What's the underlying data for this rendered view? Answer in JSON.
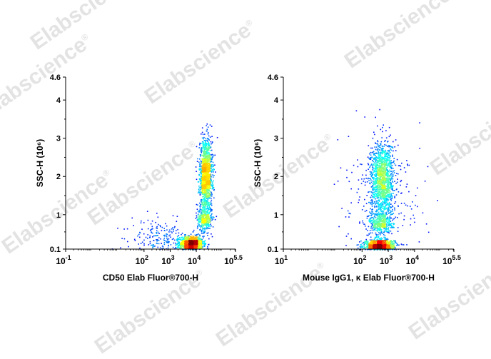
{
  "watermark": {
    "text": "Elabscience",
    "mark": "®"
  },
  "chart_data": [
    {
      "type": "scatter",
      "subtype": "flow-cytometry density dot plot",
      "xlabel": "CD50 Elab Fluor®700-H",
      "ylabel": "SSC-H",
      "ylabel_unit": "(10⁶)",
      "xscale": "log",
      "xlim": [
        0.1,
        316228
      ],
      "ylim": [
        0.1,
        4.6
      ],
      "xticks": [
        {
          "label_base": "10",
          "label_exp": "-1"
        },
        {
          "label_base": "10",
          "label_exp": "2"
        },
        {
          "label_base": "10",
          "label_exp": "3"
        },
        {
          "label_base": "10",
          "label_exp": "4"
        },
        {
          "label_base": "10",
          "label_exp": "5.5"
        }
      ],
      "yticks": [
        "0.1",
        "1",
        "2",
        "3",
        "4",
        "4.6"
      ],
      "populations": [
        {
          "name": "",
          "x_log10": 3.8,
          "y": 0.25,
          "sd_log10": 0.22,
          "sd_y": 0.1,
          "points": 1200
        },
        {
          "name": "",
          "x_log10": 4.3,
          "y": 0.9,
          "sd_log10": 0.14,
          "sd_y": 0.16,
          "points": 380
        },
        {
          "name": "",
          "x_log10": 4.35,
          "y": 2.05,
          "sd_log10": 0.12,
          "sd_y": 0.45,
          "points": 1500
        },
        {
          "name": "",
          "x_log10": 2.6,
          "y": 0.35,
          "sd_log10": 0.55,
          "sd_y": 0.25,
          "points": 230
        }
      ]
    },
    {
      "type": "scatter",
      "subtype": "flow-cytometry density dot plot",
      "xlabel": "Mouse IgG1, κ  Elab Fluor®700-H",
      "ylabel": "SSC-H",
      "ylabel_unit": "(10⁶)",
      "xscale": "log",
      "xlim": [
        0.1,
        316228
      ],
      "ylim": [
        0.1,
        4.6
      ],
      "xticks": [
        {
          "label_base": "10",
          "label_exp": "1"
        },
        {
          "label_base": "10",
          "label_exp": "2"
        },
        {
          "label_base": "10",
          "label_exp": "3"
        },
        {
          "label_base": "10",
          "label_exp": "4"
        },
        {
          "label_base": "10",
          "label_exp": "5.5"
        }
      ],
      "yticks": [
        "0.1",
        "1",
        "2",
        "3",
        "4",
        "4.6"
      ],
      "populations": [
        {
          "name": "",
          "x_log10": 2.65,
          "y": 0.2,
          "sd_log10": 0.28,
          "sd_y": 0.08,
          "points": 1300
        },
        {
          "name": "",
          "x_log10": 2.7,
          "y": 0.8,
          "sd_log10": 0.22,
          "sd_y": 0.16,
          "points": 420
        },
        {
          "name": "",
          "x_log10": 2.75,
          "y": 1.95,
          "sd_log10": 0.22,
          "sd_y": 0.48,
          "points": 1500
        },
        {
          "name": "",
          "x_log10": 2.8,
          "y": 1.2,
          "sd_log10": 0.85,
          "sd_y": 0.8,
          "points": 200
        }
      ]
    }
  ]
}
